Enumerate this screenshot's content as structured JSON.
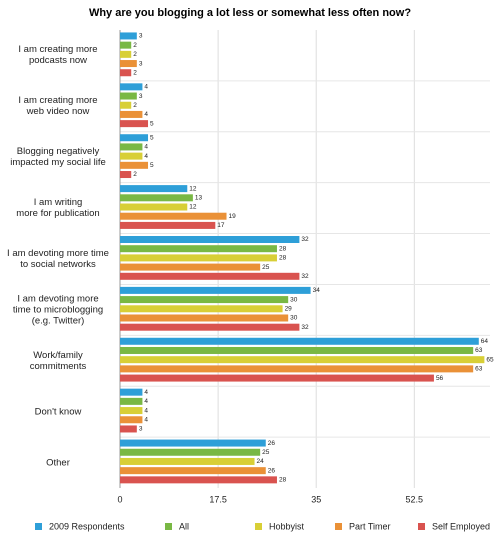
{
  "chart_data": {
    "type": "hbar",
    "title": "Why are you blogging a lot less or somewhat less often now?",
    "categories": [
      "I am creating more\npodcasts now",
      "I am creating more\nweb video now",
      "Blogging negatively\nimpacted my social life",
      "I am writing\nmore for publication",
      "I am devoting more time\nto social networks",
      "I am devoting more\ntime to microblogging\n(e.g. Twitter)",
      "Work/family\ncommitments",
      "Don't know",
      "Other"
    ],
    "series": [
      {
        "name": "2009 Respondents",
        "color": "#2e9fd8",
        "values": [
          3,
          4,
          5,
          12,
          32,
          34,
          64,
          4,
          26
        ]
      },
      {
        "name": "All",
        "color": "#79b844",
        "values": [
          2,
          3,
          4,
          13,
          28,
          30,
          63,
          4,
          25
        ]
      },
      {
        "name": "Hobbyist",
        "color": "#d8cf36",
        "values": [
          2,
          2,
          4,
          12,
          28,
          29,
          65,
          4,
          24
        ]
      },
      {
        "name": "Part Timer",
        "color": "#ea9137",
        "values": [
          3,
          4,
          5,
          19,
          25,
          30,
          63,
          4,
          26
        ]
      },
      {
        "name": "Self Employed",
        "color": "#d9534f",
        "values": [
          2,
          5,
          2,
          17,
          32,
          32,
          56,
          3,
          28
        ]
      }
    ],
    "xlim": [
      0,
      66
    ],
    "xticks": [
      0,
      17.5,
      35,
      52.5
    ],
    "grid": true
  }
}
